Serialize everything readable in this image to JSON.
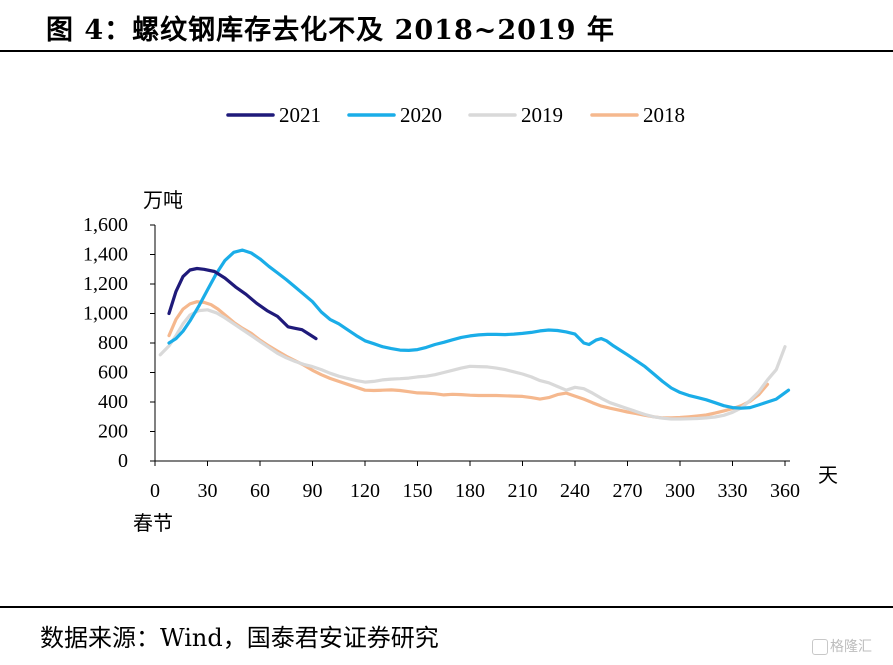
{
  "figure": {
    "title": "图 4：螺纹钢库存去化不及 2018~2019 年",
    "source": "数据来源：Wind，国泰君安证券研究",
    "watermark": "格隆汇"
  },
  "chart_data": {
    "type": "line",
    "ylabel": "万吨",
    "xlabel": "天",
    "x_origin_label": "春节",
    "xlim": [
      0,
      360
    ],
    "ylim": [
      0,
      1600
    ],
    "xticks": [
      "0",
      "30",
      "60",
      "90",
      "120",
      "150",
      "180",
      "210",
      "240",
      "270",
      "300",
      "330",
      "360"
    ],
    "yticks": [
      "0",
      "200",
      "400",
      "600",
      "800",
      "1,000",
      "1,200",
      "1,400",
      "1,600"
    ],
    "grid": false,
    "legend_position": "top",
    "series": [
      {
        "name": "2021",
        "color": "#1f1a7a",
        "x": [
          8,
          12,
          16,
          20,
          24,
          28,
          34,
          40,
          46,
          52,
          58,
          64,
          70,
          76,
          80,
          84,
          88,
          92
        ],
        "y": [
          1000,
          1150,
          1250,
          1295,
          1305,
          1300,
          1285,
          1240,
          1180,
          1130,
          1070,
          1020,
          980,
          910,
          900,
          890,
          860,
          830
        ]
      },
      {
        "name": "2020",
        "color": "#1aade8",
        "x": [
          8,
          12,
          16,
          20,
          25,
          30,
          35,
          40,
          45,
          50,
          55,
          60,
          65,
          70,
          75,
          80,
          85,
          90,
          95,
          100,
          105,
          110,
          115,
          120,
          125,
          130,
          135,
          140,
          145,
          150,
          155,
          160,
          165,
          170,
          175,
          180,
          185,
          190,
          195,
          200,
          205,
          210,
          215,
          220,
          225,
          230,
          235,
          240,
          245,
          248,
          252,
          255,
          258,
          262,
          266,
          270,
          275,
          280,
          285,
          290,
          295,
          300,
          305,
          310,
          315,
          320,
          325,
          330,
          335,
          340,
          345,
          350,
          355,
          362
        ],
        "y": [
          800,
          830,
          880,
          950,
          1050,
          1160,
          1270,
          1360,
          1415,
          1430,
          1410,
          1370,
          1320,
          1275,
          1230,
          1180,
          1130,
          1080,
          1010,
          960,
          930,
          890,
          850,
          815,
          795,
          775,
          762,
          752,
          750,
          755,
          770,
          790,
          805,
          822,
          838,
          848,
          855,
          858,
          858,
          857,
          860,
          865,
          872,
          882,
          888,
          885,
          875,
          860,
          800,
          790,
          820,
          830,
          815,
          780,
          750,
          720,
          680,
          640,
          590,
          540,
          495,
          465,
          445,
          430,
          415,
          395,
          375,
          362,
          358,
          362,
          380,
          400,
          420,
          480
        ]
      },
      {
        "name": "2019",
        "color": "#d9d9d9",
        "x": [
          3,
          8,
          12,
          16,
          20,
          25,
          30,
          35,
          40,
          45,
          50,
          55,
          60,
          65,
          70,
          75,
          80,
          85,
          90,
          95,
          100,
          105,
          110,
          115,
          120,
          125,
          130,
          135,
          140,
          145,
          150,
          155,
          160,
          165,
          170,
          175,
          180,
          185,
          190,
          195,
          200,
          205,
          210,
          215,
          220,
          225,
          230,
          235,
          240,
          245,
          250,
          255,
          260,
          265,
          270,
          275,
          280,
          285,
          290,
          295,
          300,
          305,
          310,
          315,
          320,
          325,
          330,
          335,
          340,
          345,
          350,
          355,
          360
        ],
        "y": [
          720,
          780,
          850,
          930,
          990,
          1020,
          1025,
          1005,
          970,
          930,
          890,
          850,
          810,
          770,
          730,
          700,
          675,
          655,
          640,
          620,
          595,
          575,
          560,
          545,
          535,
          540,
          550,
          555,
          558,
          562,
          570,
          575,
          585,
          600,
          615,
          630,
          642,
          640,
          638,
          630,
          620,
          605,
          590,
          570,
          545,
          530,
          505,
          480,
          500,
          490,
          460,
          425,
          395,
          375,
          355,
          335,
          315,
          300,
          290,
          285,
          285,
          286,
          288,
          292,
          298,
          310,
          330,
          360,
          410,
          470,
          550,
          620,
          775
        ]
      },
      {
        "name": "2018",
        "color": "#f5b88e",
        "x": [
          8,
          12,
          16,
          20,
          24,
          28,
          32,
          36,
          40,
          45,
          50,
          55,
          60,
          65,
          70,
          75,
          80,
          85,
          90,
          95,
          100,
          105,
          110,
          115,
          120,
          125,
          130,
          135,
          140,
          145,
          150,
          155,
          160,
          165,
          170,
          175,
          180,
          185,
          190,
          195,
          200,
          205,
          210,
          215,
          220,
          225,
          230,
          235,
          240,
          245,
          250,
          255,
          260,
          265,
          270,
          275,
          280,
          285,
          290,
          295,
          300,
          305,
          310,
          315,
          320,
          325,
          330,
          335,
          340,
          345,
          350
        ],
        "y": [
          850,
          960,
          1030,
          1065,
          1080,
          1075,
          1060,
          1030,
          990,
          940,
          900,
          865,
          820,
          780,
          745,
          710,
          680,
          650,
          615,
          585,
          560,
          540,
          520,
          500,
          480,
          478,
          480,
          482,
          478,
          470,
          462,
          460,
          456,
          448,
          452,
          450,
          446,
          444,
          444,
          444,
          442,
          440,
          438,
          430,
          420,
          430,
          450,
          460,
          440,
          420,
          395,
          372,
          358,
          345,
          332,
          322,
          310,
          300,
          292,
          292,
          295,
          300,
          305,
          312,
          325,
          340,
          355,
          375,
          405,
          450,
          520
        ]
      }
    ]
  }
}
